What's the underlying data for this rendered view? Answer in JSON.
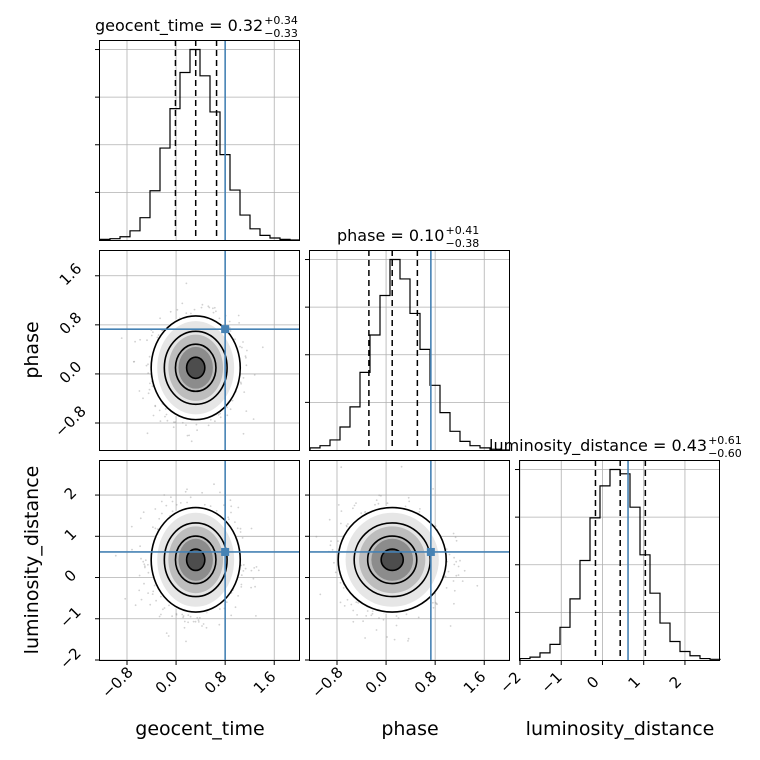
{
  "chart_data": {
    "type": "corner",
    "parameters": [
      "geocent_time",
      "phase",
      "luminosity_distance"
    ],
    "truths": [
      0.8,
      0.73,
      0.62
    ],
    "truth_color": "#4682b4",
    "grid": true,
    "ranges": {
      "geocent_time": [
        -1.24,
        2.02
      ],
      "phase": [
        -1.24,
        2.02
      ],
      "luminosity_distance": [
        -2.0,
        2.85
      ]
    },
    "axes": {
      "geocent_time": {
        "ticks": [
          -0.8,
          0.0,
          0.8,
          1.6
        ],
        "tick_labels": [
          "−0.8",
          "0.0",
          "0.8",
          "1.6"
        ]
      },
      "phase": {
        "ticks": [
          -0.8,
          0.0,
          0.8,
          1.6
        ],
        "tick_labels": [
          "−0.8",
          "0.0",
          "0.8",
          "1.6"
        ]
      },
      "luminosity_distance": {
        "ticks": [
          -2,
          -1,
          0,
          1,
          2
        ],
        "tick_labels": [
          "−2",
          "−1",
          "0",
          "1",
          "2"
        ]
      }
    },
    "xlabels": [
      "geocent_time",
      "phase",
      "luminosity_distance"
    ],
    "ylabels": [
      "phase",
      "luminosity_distance"
    ],
    "marginals": [
      {
        "parameter": "geocent_time",
        "title_main": "geocent_time = 0.32",
        "title_plus": "+0.34",
        "title_minus": "−0.33",
        "median": 0.32,
        "quantiles": [
          -0.01,
          0.32,
          0.66
        ],
        "bins": [
          -1.24,
          -1.077,
          -0.914,
          -0.751,
          -0.588,
          -0.425,
          -0.262,
          -0.099,
          0.064,
          0.227,
          0.39,
          0.553,
          0.716,
          0.879,
          1.042,
          1.205,
          1.368,
          1.531,
          1.694,
          1.857,
          2.02
        ],
        "counts": [
          1,
          2,
          5,
          14,
          34,
          75,
          140,
          200,
          255,
          290,
          250,
          195,
          130,
          76,
          38,
          17,
          7,
          3,
          1,
          0
        ]
      },
      {
        "parameter": "phase",
        "title_main": "phase = 0.10",
        "title_plus": "+0.41",
        "title_minus": "−0.38",
        "median": 0.1,
        "quantiles": [
          -0.28,
          0.1,
          0.51
        ],
        "bins": [
          -1.24,
          -1.077,
          -0.914,
          -0.751,
          -0.588,
          -0.425,
          -0.262,
          -0.099,
          0.064,
          0.227,
          0.39,
          0.553,
          0.716,
          0.879,
          1.042,
          1.205,
          1.368,
          1.531,
          1.694,
          1.857,
          2.02
        ],
        "counts": [
          3,
          6,
          14,
          32,
          60,
          108,
          160,
          215,
          265,
          238,
          190,
          140,
          90,
          52,
          26,
          12,
          6,
          3,
          1,
          0
        ]
      },
      {
        "parameter": "luminosity_distance",
        "title_main": "luminosity_distance = 0.43",
        "title_plus": "+0.61",
        "title_minus": "−0.60",
        "median": 0.43,
        "quantiles": [
          -0.17,
          0.43,
          1.04
        ],
        "bins": [
          -2.0,
          -1.7575,
          -1.515,
          -1.2725,
          -1.03,
          -0.7875,
          -0.545,
          -0.3025,
          -0.06,
          0.1825,
          0.425,
          0.6675,
          0.91,
          1.1525,
          1.395,
          1.6375,
          1.88,
          2.1225,
          2.365,
          2.6075,
          2.85
        ],
        "counts": [
          2,
          4,
          10,
          22,
          46,
          86,
          140,
          200,
          245,
          268,
          262,
          215,
          148,
          94,
          52,
          26,
          12,
          6,
          2,
          1
        ]
      }
    ],
    "joint": [
      {
        "x": "geocent_time",
        "y": "phase",
        "mean": [
          0.32,
          0.1
        ],
        "sigma": [
          0.33,
          0.4
        ]
      },
      {
        "x": "geocent_time",
        "y": "luminosity_distance",
        "mean": [
          0.32,
          0.43
        ],
        "sigma": [
          0.33,
          0.6
        ]
      },
      {
        "x": "phase",
        "y": "luminosity_distance",
        "mean": [
          0.1,
          0.43
        ],
        "sigma": [
          0.4,
          0.6
        ]
      }
    ]
  }
}
